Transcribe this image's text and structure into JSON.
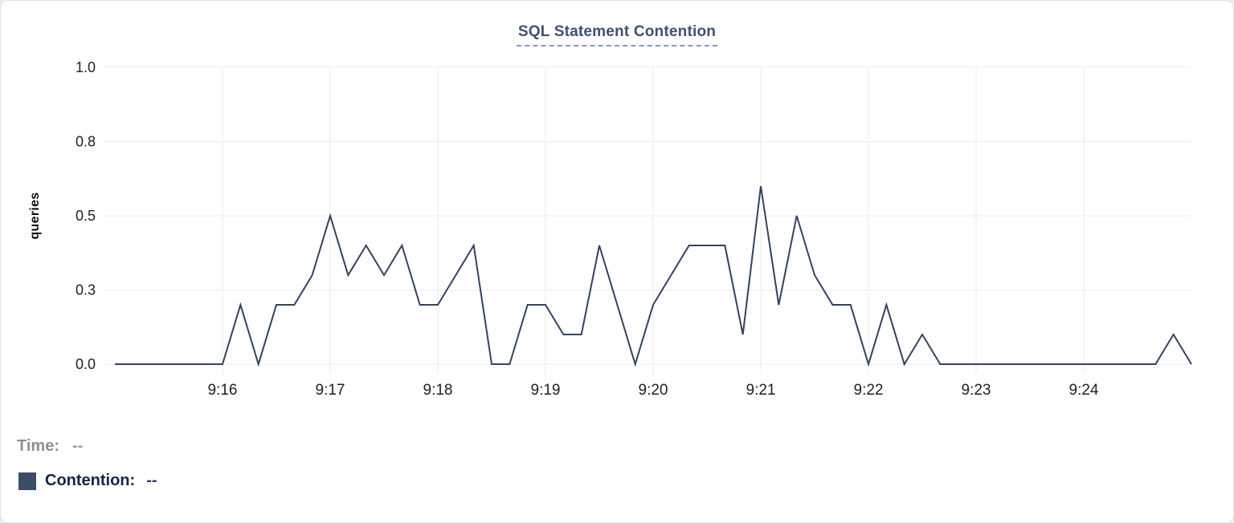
{
  "colors": {
    "line": "#33425f",
    "grid": "#ebebeb",
    "title": "#3d5174",
    "title_underline": "#8a94c8",
    "tick_text": "#212121",
    "time_label": "#8f8f8f",
    "time_value": "#9a9a9a",
    "contention_label": "#172449",
    "contention_value": "#2e3c63",
    "swatch": "#3e4d66",
    "card_background": "#ffffff"
  },
  "legend": {
    "time": {
      "label": "Time:",
      "value": "--"
    },
    "contention": {
      "label": "Contention:",
      "value": "--",
      "swatch_color": "#3e4d66"
    }
  },
  "chart_data": {
    "type": "line",
    "title": "SQL Statement Contention",
    "ylabel": "queries",
    "xlabel": "",
    "ylim": [
      0,
      1.0
    ],
    "x_start": "9:15:00",
    "x_end": "9:25:00",
    "x_interval_seconds": 10,
    "grid": true,
    "legend_position": "bottom-left",
    "yticks": [
      {
        "value": 1.0,
        "label": "1.0"
      },
      {
        "value": 0.75,
        "label": "0.8"
      },
      {
        "value": 0.5,
        "label": "0.5"
      },
      {
        "value": 0.25,
        "label": "0.3"
      },
      {
        "value": 0.0,
        "label": "0.0"
      }
    ],
    "xticks": [
      "9:16",
      "9:17",
      "9:18",
      "9:19",
      "9:20",
      "9:21",
      "9:22",
      "9:23",
      "9:24"
    ],
    "series": [
      {
        "name": "Contention",
        "unit": "queries",
        "color": "#33425f",
        "points": [
          {
            "t": "9:15:00",
            "v": 0
          },
          {
            "t": "9:15:10",
            "v": 0
          },
          {
            "t": "9:15:20",
            "v": 0
          },
          {
            "t": "9:15:30",
            "v": 0
          },
          {
            "t": "9:15:40",
            "v": 0
          },
          {
            "t": "9:15:50",
            "v": 0
          },
          {
            "t": "9:16:00",
            "v": 0
          },
          {
            "t": "9:16:10",
            "v": 0.2
          },
          {
            "t": "9:16:20",
            "v": 0
          },
          {
            "t": "9:16:30",
            "v": 0.2
          },
          {
            "t": "9:16:40",
            "v": 0.2
          },
          {
            "t": "9:16:50",
            "v": 0.3
          },
          {
            "t": "9:17:00",
            "v": 0.5
          },
          {
            "t": "9:17:10",
            "v": 0.3
          },
          {
            "t": "9:17:20",
            "v": 0.4
          },
          {
            "t": "9:17:30",
            "v": 0.3
          },
          {
            "t": "9:17:40",
            "v": 0.4
          },
          {
            "t": "9:17:50",
            "v": 0.2
          },
          {
            "t": "9:18:00",
            "v": 0.2
          },
          {
            "t": "9:18:10",
            "v": 0.3
          },
          {
            "t": "9:18:20",
            "v": 0.4
          },
          {
            "t": "9:18:30",
            "v": 0
          },
          {
            "t": "9:18:40",
            "v": 0
          },
          {
            "t": "9:18:50",
            "v": 0.2
          },
          {
            "t": "9:19:00",
            "v": 0.2
          },
          {
            "t": "9:19:10",
            "v": 0.1
          },
          {
            "t": "9:19:20",
            "v": 0.1
          },
          {
            "t": "9:19:30",
            "v": 0.4
          },
          {
            "t": "9:19:40",
            "v": 0.2
          },
          {
            "t": "9:19:50",
            "v": 0
          },
          {
            "t": "9:20:00",
            "v": 0.2
          },
          {
            "t": "9:20:10",
            "v": 0.3
          },
          {
            "t": "9:20:20",
            "v": 0.4
          },
          {
            "t": "9:20:30",
            "v": 0.4
          },
          {
            "t": "9:20:40",
            "v": 0.4
          },
          {
            "t": "9:20:50",
            "v": 0.1
          },
          {
            "t": "9:21:00",
            "v": 0.6
          },
          {
            "t": "9:21:10",
            "v": 0.2
          },
          {
            "t": "9:21:20",
            "v": 0.5
          },
          {
            "t": "9:21:30",
            "v": 0.3
          },
          {
            "t": "9:21:40",
            "v": 0.2
          },
          {
            "t": "9:21:50",
            "v": 0.2
          },
          {
            "t": "9:22:00",
            "v": 0
          },
          {
            "t": "9:22:10",
            "v": 0.2
          },
          {
            "t": "9:22:20",
            "v": 0
          },
          {
            "t": "9:22:30",
            "v": 0.1
          },
          {
            "t": "9:22:40",
            "v": 0
          },
          {
            "t": "9:22:50",
            "v": 0
          },
          {
            "t": "9:23:00",
            "v": 0
          },
          {
            "t": "9:23:10",
            "v": 0
          },
          {
            "t": "9:23:20",
            "v": 0
          },
          {
            "t": "9:23:30",
            "v": 0
          },
          {
            "t": "9:23:40",
            "v": 0
          },
          {
            "t": "9:23:50",
            "v": 0
          },
          {
            "t": "9:24:00",
            "v": 0
          },
          {
            "t": "9:24:10",
            "v": 0
          },
          {
            "t": "9:24:20",
            "v": 0
          },
          {
            "t": "9:24:30",
            "v": 0
          },
          {
            "t": "9:24:40",
            "v": 0
          },
          {
            "t": "9:24:50",
            "v": 0.1
          },
          {
            "t": "9:25:00",
            "v": 0
          }
        ]
      }
    ]
  }
}
